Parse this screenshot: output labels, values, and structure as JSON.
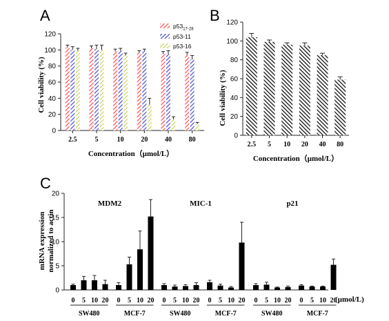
{
  "panel_labels": [
    "A",
    "B",
    "C"
  ],
  "chart_data": [
    {
      "type": "bar",
      "panel": "A",
      "categories": [
        "2.5",
        "5",
        "10",
        "20",
        "40",
        "80"
      ],
      "series": [
        {
          "name": "p53",
          "name_sub": "17-28",
          "color": "#ff4a4a",
          "values": [
            103,
            102,
            98,
            97,
            95,
            94
          ],
          "errors": [
            3,
            3,
            3,
            2,
            3,
            3
          ]
        },
        {
          "name": "p53-11",
          "name_sub": "",
          "color": "#4a4ad8",
          "values": [
            100,
            101,
            99,
            99,
            95,
            88
          ],
          "errors": [
            4,
            5,
            3,
            2,
            4,
            5
          ]
        },
        {
          "name": "p53-16",
          "name_sub": "",
          "color": "#c8d45a",
          "values": [
            99,
            100,
            93,
            32,
            14,
            8
          ],
          "errors": [
            3,
            6,
            3,
            8,
            3,
            2
          ]
        }
      ],
      "xlabel": "Concentration（µmol/L）",
      "ylabel": "Cell viability (%)",
      "ylim": [
        0,
        120
      ],
      "yticks": [
        "0",
        "20",
        "40",
        "60",
        "80",
        "100",
        "120"
      ],
      "legend_position": "top-right"
    },
    {
      "type": "bar",
      "panel": "B",
      "categories": [
        "2.5",
        "5",
        "10",
        "20",
        "40",
        "80"
      ],
      "values": [
        104,
        99,
        96,
        95,
        85,
        59
      ],
      "errors": [
        4,
        2,
        2,
        3,
        2,
        3
      ],
      "xlabel": "Concentration（µmol/L）",
      "ylabel": "Cell viability (%)",
      "ylim": [
        0,
        120
      ],
      "yticks": [
        "0",
        "20",
        "40",
        "60",
        "80",
        "100",
        "120"
      ]
    },
    {
      "type": "bar",
      "panel": "C",
      "ylabel_lines": [
        "mRNA expression",
        "normalized to actin"
      ],
      "ylim": [
        0,
        20
      ],
      "yticks": [
        "0",
        "5",
        "10",
        "15",
        "20"
      ],
      "unit_label": "(µmol/L)",
      "tick_labels": [
        "0",
        "5",
        "10",
        "20"
      ],
      "groups": [
        {
          "title": "MDM2",
          "subgroups": [
            {
              "name": "SW480",
              "values": [
                1.0,
                2.0,
                2.0,
                1.2
              ],
              "errors": [
                0.2,
                0.8,
                1.0,
                0.8
              ]
            },
            {
              "name": "MCF-7",
              "values": [
                1.0,
                5.3,
                8.4,
                15.2
              ],
              "errors": [
                0.5,
                1.5,
                3.8,
                3.5
              ]
            }
          ]
        },
        {
          "title": "MIC-1",
          "subgroups": [
            {
              "name": "SW480",
              "values": [
                1.0,
                0.7,
                0.8,
                1.0
              ],
              "errors": [
                0.3,
                0.3,
                0.3,
                0.5
              ]
            },
            {
              "name": "MCF-7",
              "values": [
                1.6,
                0.9,
                0.5,
                9.8
              ],
              "errors": [
                0.4,
                0.3,
                0.2,
                4.2
              ]
            }
          ]
        },
        {
          "title": "p21",
          "subgroups": [
            {
              "name": "SW480",
              "values": [
                1.0,
                1.1,
                0.5,
                0.6
              ],
              "errors": [
                0.3,
                0.5,
                0.1,
                0.2
              ]
            },
            {
              "name": "MCF-7",
              "values": [
                0.9,
                0.7,
                0.7,
                5.2
              ],
              "errors": [
                0.2,
                0.1,
                0.1,
                1.2
              ]
            }
          ]
        }
      ]
    }
  ]
}
